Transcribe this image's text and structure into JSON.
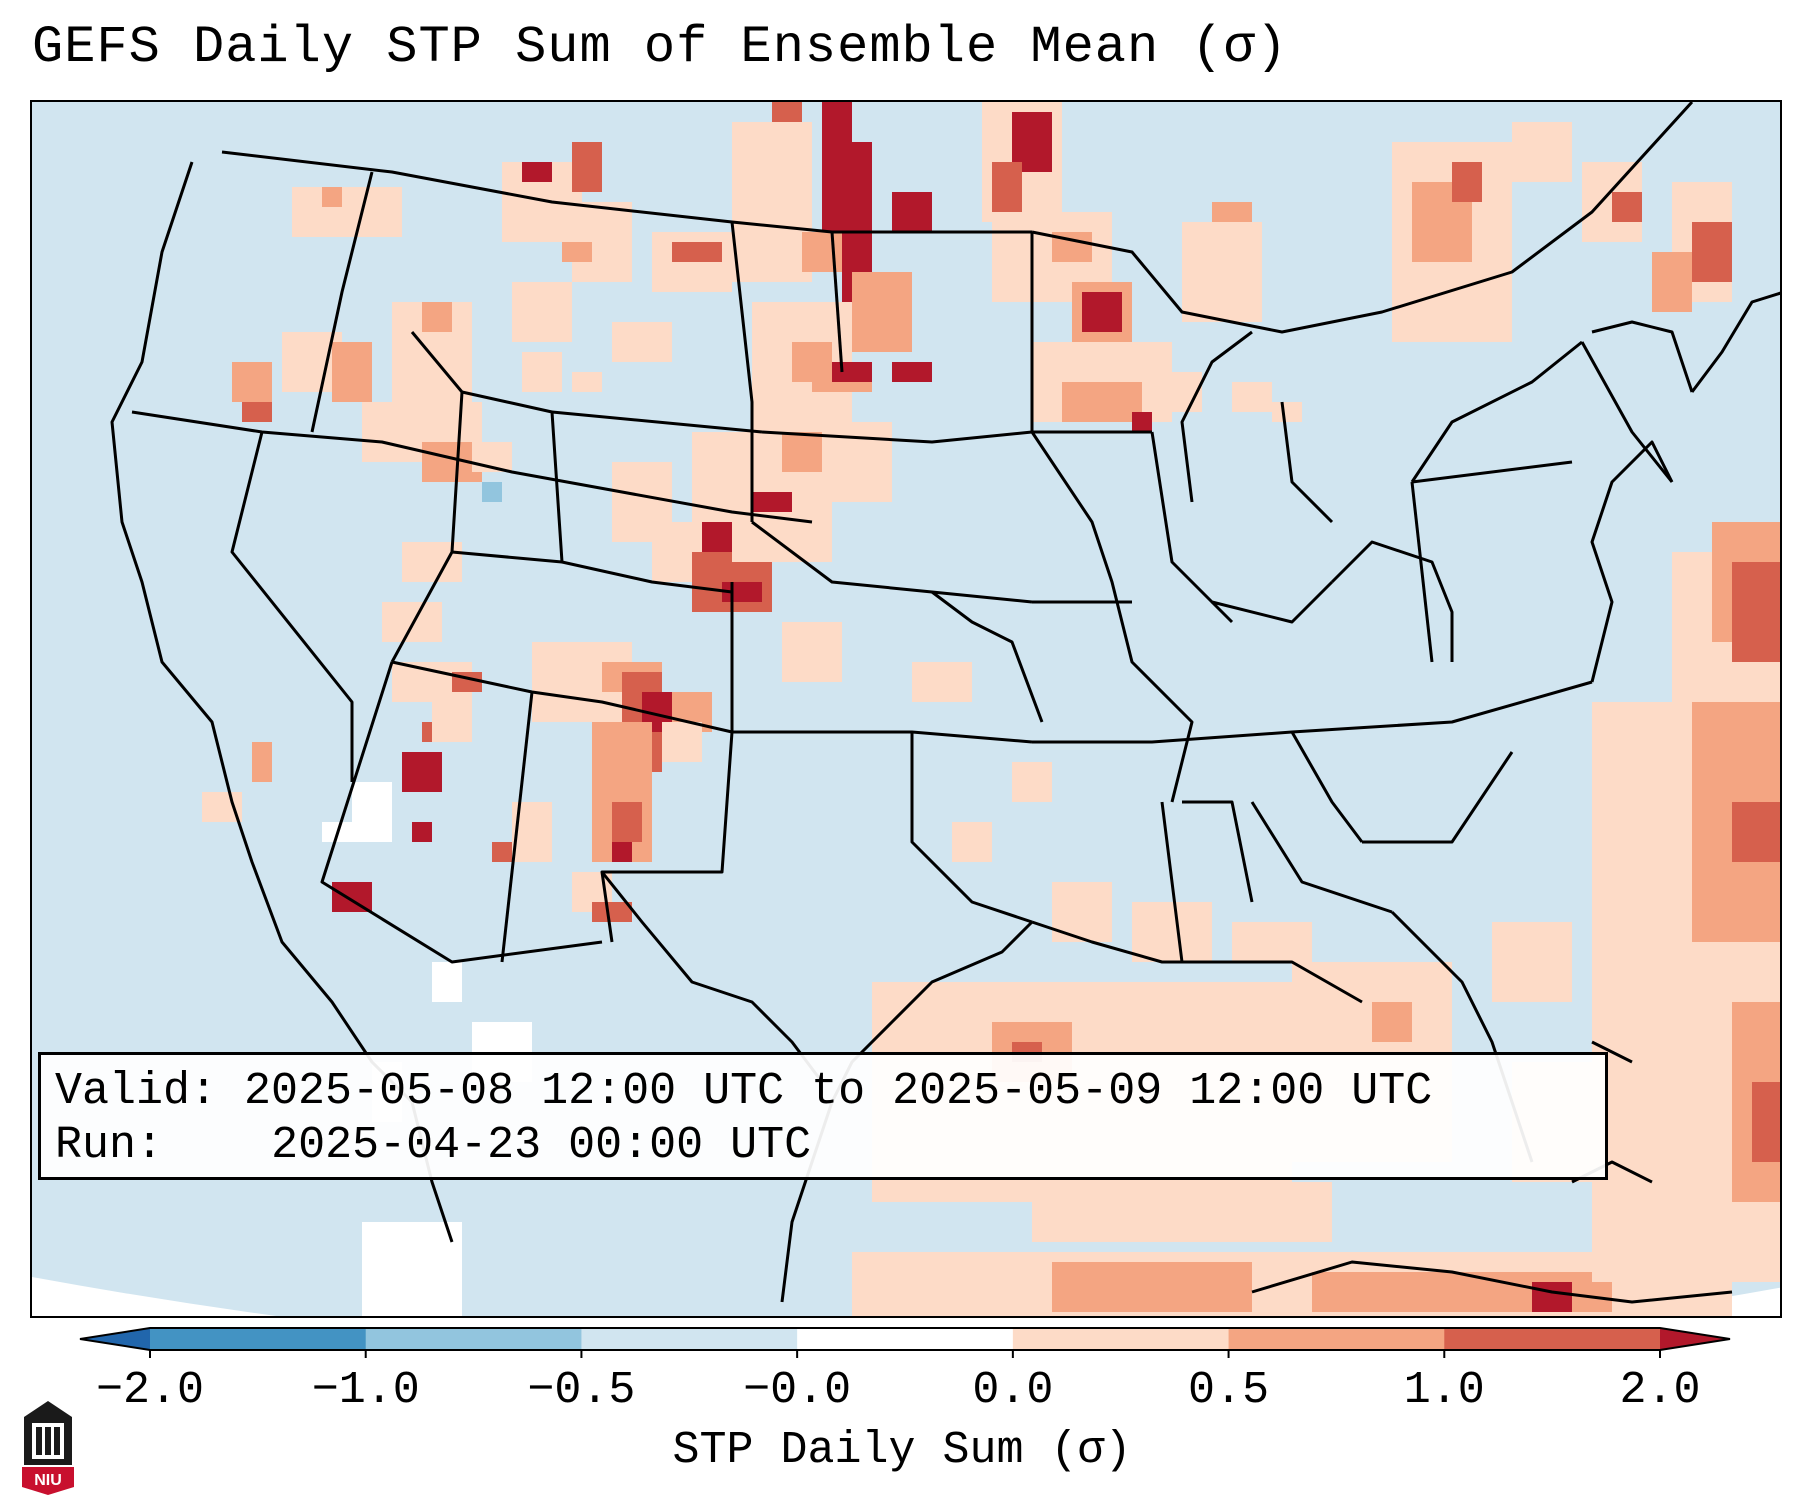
{
  "title": "GEFS Daily STP Sum of Ensemble Mean (σ)",
  "info": {
    "valid_label": "Valid:",
    "valid_value": "2025-05-08 12:00 UTC to 2025-05-09 12:00 UTC",
    "run_label": "Run:",
    "run_value": "2025-04-23 00:00 UTC"
  },
  "colorbar": {
    "label": "STP Daily Sum (σ)",
    "ticks": [
      "−2.0",
      "−1.0",
      "−0.5",
      "−0.0",
      "0.0",
      "0.5",
      "1.0",
      "2.0"
    ],
    "colors": [
      "#2166ac",
      "#4393c3",
      "#92c5de",
      "#d1e5f0",
      "#ffffff",
      "#fddbc7",
      "#f4a582",
      "#d6604d",
      "#b2182b"
    ]
  },
  "logo": {
    "text": "NIU"
  },
  "colors": {
    "background": "#d1e5f0",
    "weak_pos": "#fddbc7",
    "mid_pos": "#f4a582",
    "strong_pos": "#d6604d",
    "max_pos": "#b2182b"
  }
}
